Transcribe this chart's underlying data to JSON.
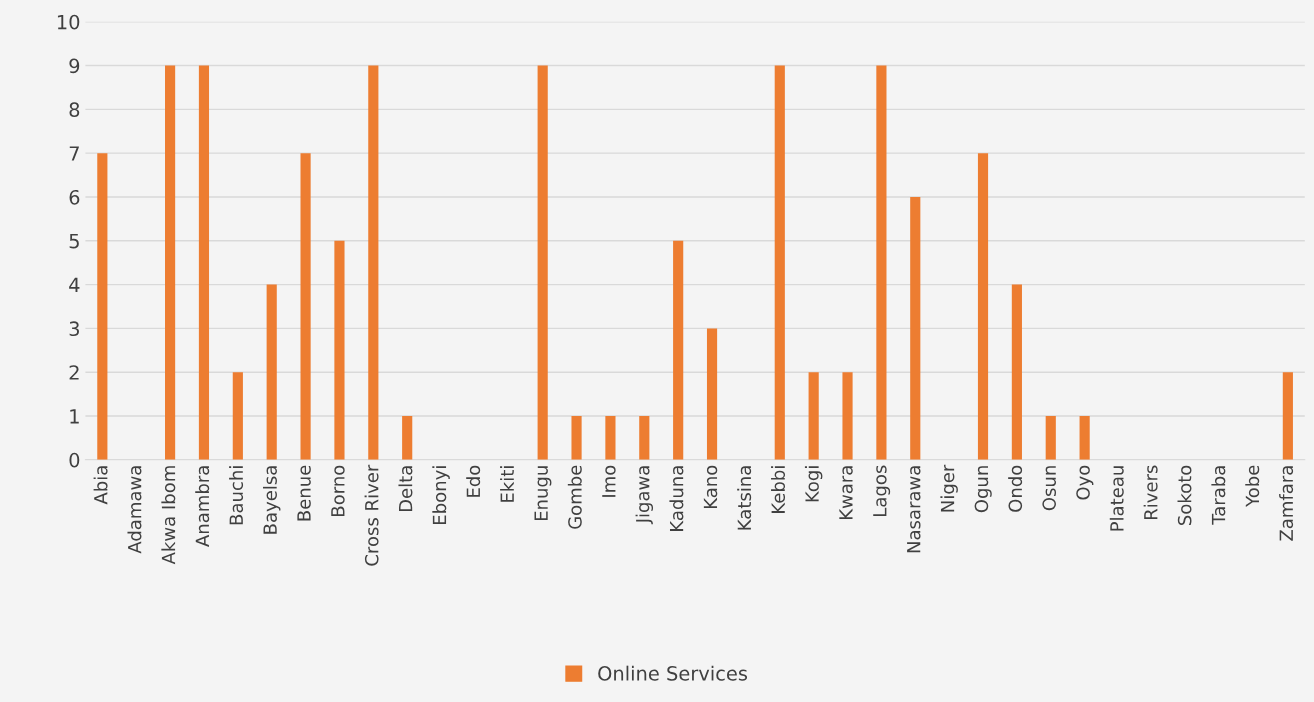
{
  "chart_data": {
    "type": "bar",
    "categories": [
      "Abia",
      "Adamawa",
      "Akwa Ibom",
      "Anambra",
      "Bauchi",
      "Bayelsa",
      "Benue",
      "Borno",
      "Cross River",
      "Delta",
      "Ebonyi",
      "Edo",
      "Ekiti",
      "Enugu",
      "Gombe",
      "Imo",
      "Jigawa",
      "Kaduna",
      "Kano",
      "Katsina",
      "Kebbi",
      "Kogi",
      "Kwara",
      "Lagos",
      "Nasarawa",
      "Niger",
      "Ogun",
      "Ondo",
      "Osun",
      "Oyo",
      "Plateau",
      "Rivers",
      "Sokoto",
      "Taraba",
      "Yobe",
      "Zamfara"
    ],
    "series": [
      {
        "name": "Online Services",
        "color": "#ed7d31",
        "values": [
          7,
          0,
          9,
          9,
          2,
          4,
          7,
          5,
          9,
          1,
          0,
          0,
          0,
          9,
          1,
          1,
          1,
          5,
          3,
          0,
          9,
          2,
          2,
          9,
          6,
          0,
          7,
          4,
          1,
          1,
          0,
          0,
          0,
          0,
          0,
          2
        ]
      }
    ],
    "ylim": [
      0,
      10
    ],
    "yticks": [
      0,
      1,
      2,
      3,
      4,
      5,
      6,
      7,
      8,
      9,
      10
    ],
    "grid": "y",
    "legend": "bottom"
  }
}
